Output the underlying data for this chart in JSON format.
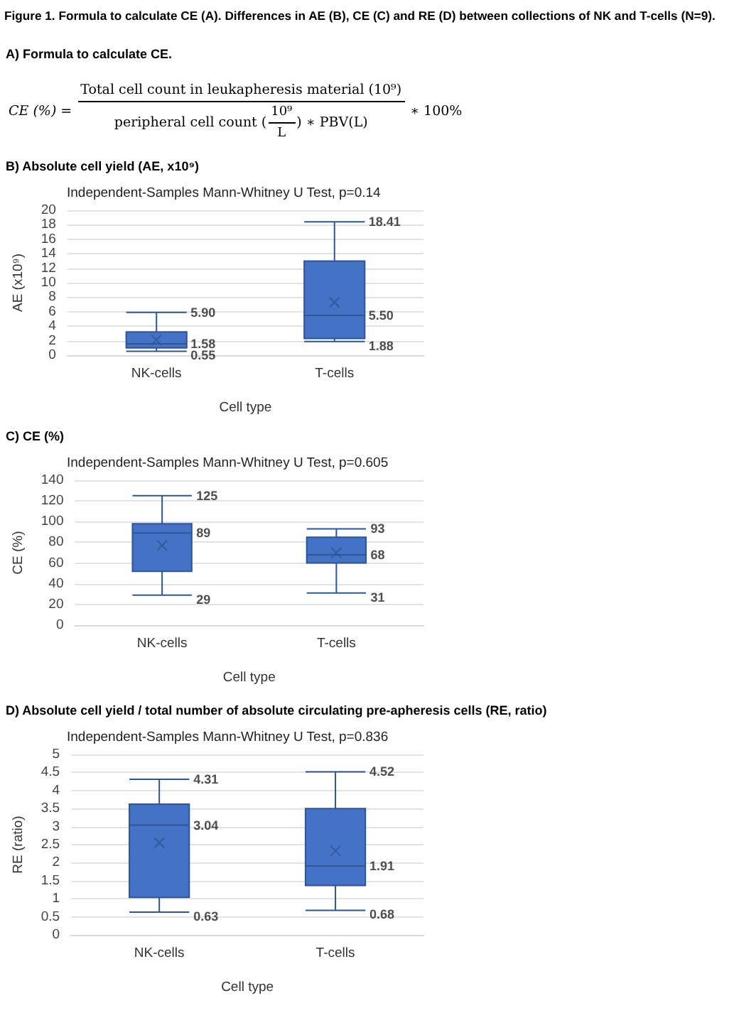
{
  "chart_data": [
    {
      "type": "other",
      "title": "Figure 1. Formula to calculate CE (A). Differences in AE (B), CE (C) and RE (D) between collections of NK and T-cells (N=9).",
      "subtitle": "A) Formula to calculate CE.",
      "annotations": [
        "CE (%) =",
        "Total cell count in leukapheresis material (10⁹)",
        "peripheral cell count (",
        "10⁹",
        "L",
        ") ∗ PBV(L)",
        "∗ 100%"
      ]
    },
    {
      "type": "box",
      "title": "B) Absolute cell yield (AE, x10⁹)",
      "subtitle": "Independent-Samples Mann-Whitney U Test, p=0.14",
      "xlabel": "Cell type",
      "ylabel": "AE (x10⁹)",
      "categories": [
        "NK-cells",
        "T-cells"
      ],
      "ylim": [
        0,
        20
      ],
      "yticks": [
        0,
        2,
        4,
        6,
        8,
        10,
        12,
        14,
        16,
        18,
        20
      ],
      "grid": "y",
      "series": [
        {
          "color": "#4472c4",
          "boxes": [
            {
              "low": 0.55,
              "q1": 1.0,
              "median": 1.58,
              "q3": 3.2,
              "high": 5.9,
              "mean": 2.1
            },
            {
              "low": 1.88,
              "q1": 2.3,
              "median": 5.5,
              "q3": 13.0,
              "high": 18.41,
              "mean": 7.3
            }
          ]
        }
      ],
      "annotations": [
        {
          "text": "5.90",
          "x": "NK-cells",
          "y": 5.9
        },
        {
          "text": "1.58",
          "x": "NK-cells",
          "y": 1.58
        },
        {
          "text": "0.55",
          "x": "NK-cells",
          "y": 0.55
        },
        {
          "text": "18.41",
          "x": "T-cells",
          "y": 18.41
        },
        {
          "text": "5.50",
          "x": "T-cells",
          "y": 5.5
        },
        {
          "text": "1.88",
          "x": "T-cells",
          "y": 1.88
        }
      ]
    },
    {
      "type": "box",
      "title": "C) CE (%)",
      "subtitle": "Independent-Samples Mann-Whitney U Test, p=0.605",
      "xlabel": "Cell type",
      "ylabel": "CE (%)",
      "categories": [
        "NK-cells",
        "T-cells"
      ],
      "ylim": [
        0,
        140
      ],
      "yticks": [
        0,
        20,
        40,
        60,
        80,
        100,
        120,
        140
      ],
      "grid": "y",
      "series": [
        {
          "color": "#4472c4",
          "boxes": [
            {
              "low": 29,
              "q1": 52,
              "median": 89,
              "q3": 98,
              "high": 125,
              "mean": 77
            },
            {
              "low": 31,
              "q1": 60,
              "median": 68,
              "q3": 85,
              "high": 93,
              "mean": 70
            }
          ]
        }
      ],
      "annotations": [
        {
          "text": "125",
          "x": "NK-cells",
          "y": 125
        },
        {
          "text": "89",
          "x": "NK-cells",
          "y": 89
        },
        {
          "text": "29",
          "x": "NK-cells",
          "y": 29
        },
        {
          "text": "93",
          "x": "T-cells",
          "y": 93
        },
        {
          "text": "68",
          "x": "T-cells",
          "y": 68
        },
        {
          "text": "31",
          "x": "T-cells",
          "y": 31
        }
      ]
    },
    {
      "type": "box",
      "title": "D) Absolute cell yield / total number of absolute circulating pre-apheresis cells (RE, ratio)",
      "subtitle": "Independent-Samples Mann-Whitney U Test, p=0.836",
      "xlabel": "Cell type",
      "ylabel": "RE (ratio)",
      "categories": [
        "NK-cells",
        "T-cells"
      ],
      "ylim": [
        0,
        5
      ],
      "yticks": [
        0,
        0.5,
        1,
        1.5,
        2,
        2.5,
        3,
        3.5,
        4,
        4.5,
        5
      ],
      "grid": "y",
      "series": [
        {
          "color": "#4472c4",
          "boxes": [
            {
              "low": 0.63,
              "q1": 1.04,
              "median": 3.04,
              "q3": 3.62,
              "high": 4.31,
              "mean": 2.55
            },
            {
              "low": 0.68,
              "q1": 1.37,
              "median": 1.91,
              "q3": 3.5,
              "high": 4.52,
              "mean": 2.33
            }
          ]
        }
      ],
      "annotations": [
        {
          "text": "4.31",
          "x": "NK-cells",
          "y": 4.31
        },
        {
          "text": "3.04",
          "x": "NK-cells",
          "y": 3.04
        },
        {
          "text": "0.63",
          "x": "NK-cells",
          "y": 0.63
        },
        {
          "text": "4.52",
          "x": "T-cells",
          "y": 4.52
        },
        {
          "text": "1.91",
          "x": "T-cells",
          "y": 1.91
        },
        {
          "text": "0.68",
          "x": "T-cells",
          "y": 0.68
        }
      ]
    }
  ]
}
